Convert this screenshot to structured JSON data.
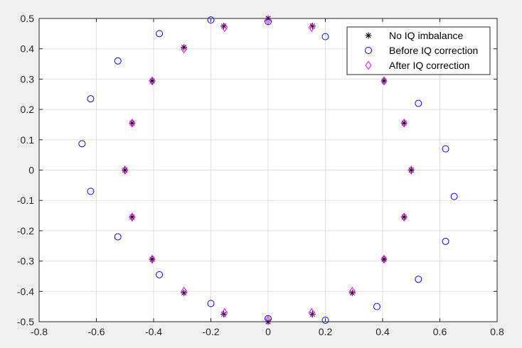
{
  "colors": {
    "figure_bg": "#f0f0f0",
    "axes_bg": "#ffffff",
    "grid": "#dfdfdf",
    "axis": "#262626",
    "no_iq": "#000000",
    "before": "#0000ff",
    "after": "#ff00ff"
  },
  "chart_data": {
    "type": "scatter",
    "title": "",
    "xlabel": "",
    "ylabel": "",
    "xlim": [
      -0.8,
      0.8
    ],
    "ylim": [
      -0.5,
      0.5
    ],
    "grid": true,
    "legend_position": "top-right",
    "xticks": [
      "-0.8",
      "-0.6",
      "-0.4",
      "-0.2",
      "0",
      "0.2",
      "0.4",
      "0.6",
      "0.8"
    ],
    "yticks": [
      "0.5",
      "0.4",
      "0.3",
      "0.2",
      "0.1",
      "0",
      "-0.1",
      "-0.2",
      "-0.3",
      "-0.4",
      "-0.5"
    ],
    "series": [
      {
        "name": "No IQ imbalance",
        "marker": "asterisk",
        "color": "#000000",
        "points": [
          [
            0.5,
            0
          ],
          [
            0.475,
            0.155
          ],
          [
            0.405,
            0.294
          ],
          [
            0.294,
            0.405
          ],
          [
            0.155,
            0.475
          ],
          [
            0,
            0.5
          ],
          [
            -0.155,
            0.475
          ],
          [
            -0.294,
            0.405
          ],
          [
            -0.405,
            0.294
          ],
          [
            -0.475,
            0.155
          ],
          [
            -0.5,
            0
          ],
          [
            -0.475,
            -0.155
          ],
          [
            -0.405,
            -0.294
          ],
          [
            -0.294,
            -0.405
          ],
          [
            -0.155,
            -0.475
          ],
          [
            0,
            -0.5
          ],
          [
            0.155,
            -0.475
          ],
          [
            0.294,
            -0.405
          ],
          [
            0.405,
            -0.294
          ],
          [
            0.475,
            -0.155
          ]
        ]
      },
      {
        "name": "Before IQ correction",
        "marker": "circle",
        "color": "#0000ff",
        "points": [
          [
            0,
            0.49
          ],
          [
            0.2,
            0.44
          ],
          [
            0.4,
            0.35
          ],
          [
            0.525,
            0.22
          ],
          [
            0.62,
            0.07
          ],
          [
            0.65,
            -0.087
          ],
          [
            0.62,
            -0.235
          ],
          [
            0.525,
            -0.36
          ],
          [
            0.38,
            -0.45
          ],
          [
            0.2,
            -0.495
          ],
          [
            0,
            -0.49
          ],
          [
            -0.2,
            -0.44
          ],
          [
            -0.38,
            -0.345
          ],
          [
            -0.525,
            -0.22
          ],
          [
            -0.62,
            -0.07
          ],
          [
            -0.65,
            0.087
          ],
          [
            -0.62,
            0.235
          ],
          [
            -0.525,
            0.36
          ],
          [
            -0.38,
            0.45
          ],
          [
            -0.2,
            0.495
          ]
        ]
      },
      {
        "name": "After IQ correction",
        "marker": "diamond",
        "color": "#ff00ff",
        "points": [
          [
            0.5,
            0
          ],
          [
            0.475,
            0.155
          ],
          [
            0.405,
            0.294
          ],
          [
            0.294,
            0.405
          ],
          [
            0.152,
            0.47
          ],
          [
            0,
            0.495
          ],
          [
            -0.152,
            0.47
          ],
          [
            -0.294,
            0.4
          ],
          [
            -0.405,
            0.294
          ],
          [
            -0.475,
            0.155
          ],
          [
            -0.5,
            0
          ],
          [
            -0.475,
            -0.155
          ],
          [
            -0.405,
            -0.294
          ],
          [
            -0.294,
            -0.4
          ],
          [
            -0.152,
            -0.47
          ],
          [
            0,
            -0.495
          ],
          [
            0.152,
            -0.47
          ],
          [
            0.294,
            -0.4
          ],
          [
            0.405,
            -0.294
          ],
          [
            0.475,
            -0.155
          ]
        ]
      }
    ]
  }
}
